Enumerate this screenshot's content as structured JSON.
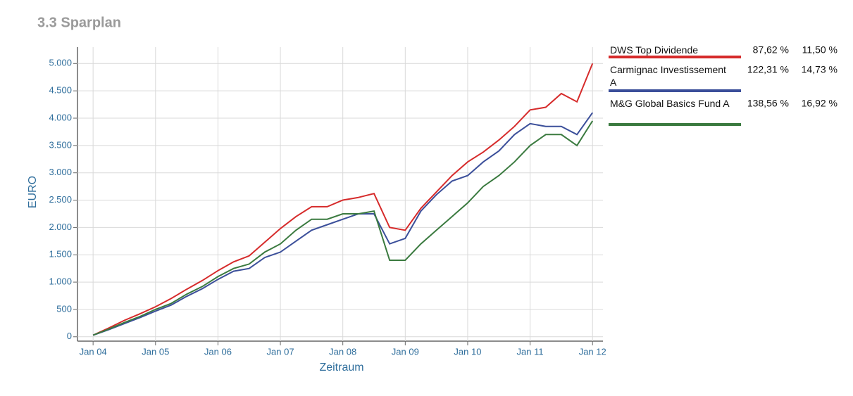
{
  "chart_data": {
    "type": "line",
    "title": "3.3 Sparplan",
    "y_label": "EURO",
    "x_label": "Zeitraum",
    "x": [
      "2004-01",
      "2004-04",
      "2004-07",
      "2004-10",
      "2005-01",
      "2005-04",
      "2005-07",
      "2005-10",
      "2006-01",
      "2006-04",
      "2006-07",
      "2006-10",
      "2007-01",
      "2007-04",
      "2007-07",
      "2007-10",
      "2008-01",
      "2008-04",
      "2008-07",
      "2008-10",
      "2009-01",
      "2009-04",
      "2009-07",
      "2009-10",
      "2010-01",
      "2010-04",
      "2010-07",
      "2010-10",
      "2011-01",
      "2011-04",
      "2011-07",
      "2011-10",
      "2012-01"
    ],
    "xlim": [
      "2003-10",
      "2012-03"
    ],
    "xticks": [
      {
        "value": "2004-01",
        "label": "Jan 04"
      },
      {
        "value": "2005-01",
        "label": "Jan 05"
      },
      {
        "value": "2006-01",
        "label": "Jan 06"
      },
      {
        "value": "2007-01",
        "label": "Jan 07"
      },
      {
        "value": "2008-01",
        "label": "Jan 08"
      },
      {
        "value": "2009-01",
        "label": "Jan 09"
      },
      {
        "value": "2010-01",
        "label": "Jan 10"
      },
      {
        "value": "2011-01",
        "label": "Jan 11"
      },
      {
        "value": "2012-01",
        "label": "Jan 12"
      }
    ],
    "ylim": [
      -80,
      5300
    ],
    "yticks": [
      0,
      500,
      {
        "value": 1000,
        "label": "1.000"
      },
      {
        "value": 1500,
        "label": "1.500"
      },
      {
        "value": 2000,
        "label": "2.000"
      },
      {
        "value": 2500,
        "label": "2.500"
      },
      {
        "value": 3000,
        "label": "3.000"
      },
      {
        "value": 3500,
        "label": "3.500"
      },
      {
        "value": 4000,
        "label": "4.000"
      },
      {
        "value": 4500,
        "label": "4.500"
      },
      {
        "value": 5000,
        "label": "5.000"
      }
    ],
    "grid": true,
    "series": [
      {
        "name": "DWS Top Dividende",
        "color": "#d62b2b",
        "performance": "87,62 %",
        "annualized": "11,50 %",
        "values": [
          30,
          160,
          300,
          420,
          550,
          700,
          870,
          1030,
          1210,
          1370,
          1480,
          1730,
          1980,
          2200,
          2380,
          2380,
          2500,
          2550,
          2620,
          2000,
          1950,
          2350,
          2650,
          2950,
          3200,
          3380,
          3600,
          3850,
          4150,
          4200,
          4450,
          4300,
          5000
        ]
      },
      {
        "name": "Carmignac Investissement A",
        "color": "#3b4f9a",
        "performance": "122,31 %",
        "annualized": "14,73 %",
        "values": [
          30,
          130,
          240,
          350,
          470,
          580,
          740,
          880,
          1050,
          1200,
          1250,
          1450,
          1550,
          1750,
          1950,
          2050,
          2150,
          2250,
          2250,
          1700,
          1800,
          2300,
          2600,
          2850,
          2950,
          3200,
          3400,
          3700,
          3900,
          3850,
          3850,
          3700,
          4100
        ]
      },
      {
        "name": "M&G Global Basics Fund A",
        "color": "#3a7a3f",
        "performance": "138,56 %",
        "annualized": "16,92 %",
        "values": [
          30,
          140,
          260,
          370,
          500,
          610,
          780,
          920,
          1100,
          1250,
          1330,
          1550,
          1700,
          1950,
          2150,
          2150,
          2250,
          2250,
          2300,
          1400,
          1400,
          1700,
          1950,
          2200,
          2450,
          2750,
          2950,
          3200,
          3500,
          3700,
          3700,
          3500,
          3950
        ]
      }
    ]
  }
}
